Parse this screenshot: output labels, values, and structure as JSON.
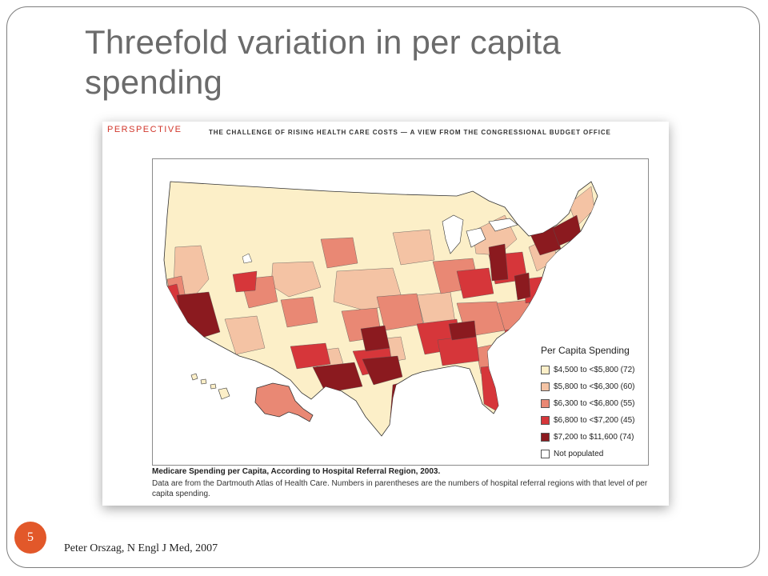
{
  "slide": {
    "title": "Threefold variation in per capita spending",
    "slide_number": "5",
    "citation": "Peter Orszag, N Engl J Med, 2007"
  },
  "figure": {
    "section_label": "PERSPECTIVE",
    "header": "THE CHALLENGE OF RISING HEALTH CARE COSTS — A VIEW FROM THE CONGRESSIONAL BUDGET OFFICE",
    "caption_title": "Medicare Spending per Capita, According to Hospital Referral Region, 2003.",
    "caption_text": "Data are from the Dartmouth Atlas of Health Care. Numbers in parentheses are the numbers of hospital referral regions with that level of per capita spending."
  },
  "legend": {
    "title": "Per Capita Spending",
    "items": [
      {
        "label": "$4,500 to <$5,800 (72)",
        "color": "#fcefc8"
      },
      {
        "label": "$5,800 to <$6,300 (60)",
        "color": "#f4c3a4"
      },
      {
        "label": "$6,300 to <$6,800 (55)",
        "color": "#e98874"
      },
      {
        "label": "$6,800 to <$7,200 (45)",
        "color": "#d6363a"
      },
      {
        "label": "$7,200 to $11,600 (74)",
        "color": "#8b1a1f"
      },
      {
        "label": "Not populated",
        "color": "#ffffff"
      }
    ]
  }
}
